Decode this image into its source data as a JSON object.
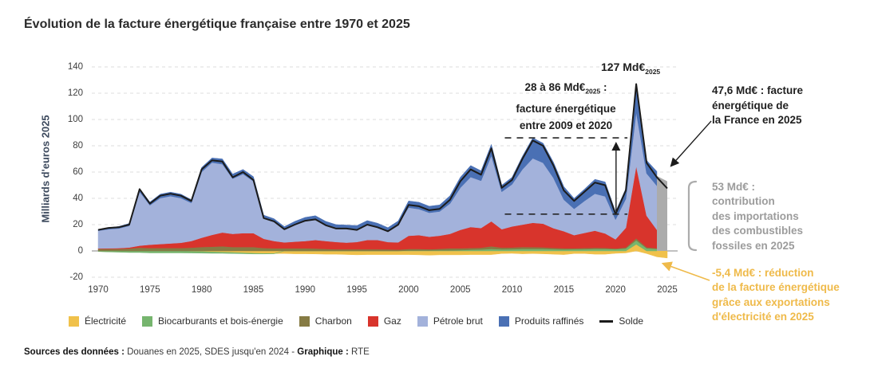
{
  "header": {
    "title": "Évolution de la facture énergétique française entre 1970 et 2025"
  },
  "chart_data": {
    "type": "area",
    "stacked": true,
    "title": "Évolution de la facture énergétique française entre 1970 et 2025",
    "ylabel": "Milliards d'euros 2025",
    "xlabel": "",
    "ylim": [
      -20,
      140
    ],
    "grid": "horizontal-dashed",
    "yticks": [
      140,
      120,
      100,
      80,
      60,
      40,
      20,
      0,
      -20
    ],
    "xticks": [
      1970,
      1975,
      1980,
      1985,
      1990,
      1995,
      2000,
      2005,
      2010,
      2015,
      2020,
      2025
    ],
    "years": [
      1970,
      1971,
      1972,
      1973,
      1974,
      1975,
      1976,
      1977,
      1978,
      1979,
      1980,
      1981,
      1982,
      1983,
      1984,
      1985,
      1986,
      1987,
      1988,
      1989,
      1990,
      1991,
      1992,
      1993,
      1994,
      1995,
      1996,
      1997,
      1998,
      1999,
      2000,
      2001,
      2002,
      2003,
      2004,
      2005,
      2006,
      2007,
      2008,
      2009,
      2010,
      2011,
      2012,
      2013,
      2014,
      2015,
      2016,
      2017,
      2018,
      2019,
      2020,
      2021,
      2022,
      2023,
      2024,
      2025
    ],
    "series": [
      {
        "key": "electricite",
        "name": "Électricité",
        "color": "#F0C14B",
        "end_year": 2025,
        "values": [
          0,
          0,
          0,
          0,
          0,
          0,
          0,
          0,
          0,
          -0.3,
          -0.5,
          -0.8,
          -1,
          -1.2,
          -1.5,
          -1.8,
          -2,
          -2,
          -2,
          -2.2,
          -2.2,
          -2.3,
          -2.5,
          -2.5,
          -2.7,
          -3,
          -2.8,
          -2.8,
          -2.8,
          -2.8,
          -2.8,
          -3,
          -3.2,
          -3,
          -3,
          -3,
          -2.8,
          -2.8,
          -2.8,
          -2,
          -1.8,
          -2.2,
          -2,
          -2.2,
          -2.5,
          -2.8,
          -2,
          -2,
          -2.5,
          -2.5,
          -1.8,
          -1.5,
          5,
          -2,
          -4.5,
          -5.4
        ]
      },
      {
        "key": "biocarburants",
        "name": "Biocarburants et bois-énergie",
        "color": "#76B56E",
        "end_year": 2024,
        "values": [
          -0.5,
          -0.8,
          -1,
          -1.2,
          -1.2,
          -1.5,
          -1.5,
          -1.5,
          -1.5,
          -1.3,
          -1.2,
          -1,
          -0.8,
          -0.8,
          -0.6,
          -0.5,
          -0.3,
          -0.2,
          0,
          0,
          0,
          0,
          0,
          0,
          0,
          0,
          0,
          0,
          0,
          0,
          0.3,
          0.3,
          0.3,
          0.4,
          0.4,
          0.6,
          0.9,
          1.1,
          1.5,
          1.2,
          1.3,
          1.5,
          1.5,
          1.5,
          1.3,
          1.1,
          1.2,
          1.3,
          1.5,
          1.5,
          1.3,
          1.8,
          3,
          2,
          1.5,
          0
        ]
      },
      {
        "key": "charbon",
        "name": "Charbon",
        "color": "#867B44",
        "end_year": 2024,
        "values": [
          1.5,
          1.5,
          1.5,
          1.8,
          2.5,
          2.2,
          2.2,
          2.2,
          2.2,
          2.5,
          3,
          3.2,
          3.5,
          3,
          3,
          3,
          2.2,
          2,
          2,
          2,
          2,
          1.8,
          1.5,
          1.3,
          1.3,
          1.3,
          1.3,
          1.3,
          1.2,
          1,
          1.2,
          1.2,
          1,
          1.2,
          1.6,
          1.4,
          1.3,
          1.3,
          2,
          1.3,
          1.3,
          1.5,
          1.4,
          1.2,
          1,
          0.9,
          0.8,
          0.9,
          0.9,
          0.8,
          0.5,
          0.8,
          1.5,
          0.8,
          0.5,
          0
        ]
      },
      {
        "key": "gaz",
        "name": "Gaz",
        "color": "#D8342C",
        "end_year": 2024,
        "values": [
          0.4,
          0.5,
          0.6,
          0.8,
          1.5,
          2.5,
          3,
          3.5,
          4,
          5,
          7,
          9,
          10.5,
          10,
          10.5,
          10.5,
          7,
          5.5,
          4.5,
          5,
          5.5,
          6.5,
          6,
          5.5,
          5,
          5.5,
          7,
          7,
          5.5,
          5.5,
          10,
          10.5,
          9.5,
          10,
          11,
          14,
          16,
          15,
          19,
          14,
          16,
          17,
          18.5,
          18,
          15,
          13,
          10,
          11.5,
          13,
          11,
          7,
          15,
          55,
          24,
          14,
          0
        ]
      },
      {
        "key": "petrole-brut",
        "name": "Pétrole brut",
        "color": "#A3B2DB",
        "end_year": 2024,
        "values": [
          13.5,
          14.5,
          15,
          16.5,
          41,
          30,
          35,
          36,
          34,
          29,
          50,
          55,
          52,
          42,
          45,
          39.5,
          15.5,
          14.5,
          10,
          13,
          15,
          15.5,
          12.5,
          11,
          11.2,
          10,
          12,
          10,
          8.5,
          13.5,
          21.5,
          19.8,
          18.2,
          18.4,
          23,
          32,
          38,
          36,
          50,
          28.5,
          32,
          42,
          49,
          46.3,
          38.2,
          24,
          20,
          24.3,
          28.1,
          28.2,
          15,
          22,
          41,
          32.2,
          33.5,
          0
        ]
      },
      {
        "key": "produits-raffines",
        "name": "Produits raffinés",
        "color": "#4A70B4",
        "end_year": 2024,
        "values": [
          1,
          1.2,
          1.5,
          1.8,
          2.5,
          2.5,
          3,
          3,
          3,
          2.5,
          3.5,
          3.5,
          4,
          3.5,
          3.5,
          3.5,
          2.5,
          2.5,
          2,
          2.5,
          3,
          3,
          2.5,
          2.2,
          2.2,
          2.5,
          2.8,
          2.8,
          2.5,
          2.8,
          5,
          5.2,
          5,
          5,
          6,
          8,
          8.8,
          7.6,
          8.5,
          5,
          5.4,
          10,
          15.6,
          15,
          12,
          10,
          8,
          9,
          11,
          11,
          6,
          7.9,
          21.5,
          10,
          11,
          0
        ]
      }
    ],
    "solde": {
      "key": "solde",
      "name": "Solde",
      "color": "#1b1b1b",
      "values": [
        16,
        17.5,
        18,
        20,
        47,
        36,
        42,
        43.5,
        42,
        38,
        62,
        69,
        68,
        56,
        60,
        54,
        25,
        22.5,
        16.5,
        20,
        23,
        24,
        19.5,
        17,
        17,
        16,
        20,
        18,
        15,
        20,
        35,
        34,
        31,
        32,
        39,
        53,
        62,
        58,
        78,
        48,
        54,
        70,
        84,
        80,
        65,
        46,
        38,
        45,
        52,
        50,
        28,
        46,
        127,
        67,
        56,
        47.6
      ]
    },
    "gray_2025": {
      "from_year": 2024,
      "to_year": 2025,
      "top_from": 57,
      "top_to": 53,
      "color": "#ABABAB"
    },
    "dashed_range": {
      "y_top": 86,
      "y_bottom": 28,
      "x_from": 2009.3,
      "x_to": 2021.15,
      "arrow_x": 2020.05
    },
    "legend_position": "bottom"
  },
  "annotations": {
    "peak": {
      "text": "127 Md€",
      "sub": "2025"
    },
    "range": {
      "t1": "28 à 86 Md€",
      "sub": "2025",
      "t2": " :",
      "line2": "facture énergétique",
      "line3": "entre 2009 et 2020"
    },
    "bill": {
      "line1": "47,6 Md€ : facture",
      "line2": "énergétique de",
      "line3": "la France en 2025"
    },
    "fossil": {
      "color": "#9C9C9C",
      "lines": [
        "53 Md€ :",
        "contribution",
        "des importations",
        "des combustibles",
        "fossiles en 2025"
      ]
    },
    "elec": {
      "color": "#EFBA4A",
      "lines": [
        "-5,4 Md€ : réduction",
        "de la facture énergétique",
        "grâce aux exportations",
        "d'électricité en 2025"
      ]
    }
  },
  "legend": {
    "items": [
      {
        "key": "electricite",
        "label": "Électricité",
        "color": "#F0C14B",
        "marker": "square"
      },
      {
        "key": "biocarburants",
        "label": "Biocarburants et bois-énergie",
        "color": "#76B56E",
        "marker": "square"
      },
      {
        "key": "charbon",
        "label": "Charbon",
        "color": "#867B44",
        "marker": "square"
      },
      {
        "key": "gaz",
        "label": "Gaz",
        "color": "#D8342C",
        "marker": "square"
      },
      {
        "key": "petrole-brut",
        "label": "Pétrole brut",
        "color": "#A3B2DB",
        "marker": "square"
      },
      {
        "key": "produits-raffines",
        "label": "Produits raffinés",
        "color": "#4A70B4",
        "marker": "square"
      },
      {
        "key": "solde",
        "label": "Solde",
        "color": "#1b1b1b",
        "marker": "line"
      }
    ]
  },
  "sources": {
    "bold1": "Sources des données :",
    "text1": " Douanes en 2025, SDES jusqu'en 2024 - ",
    "bold2": "Graphique :",
    "text2": " RTE"
  }
}
